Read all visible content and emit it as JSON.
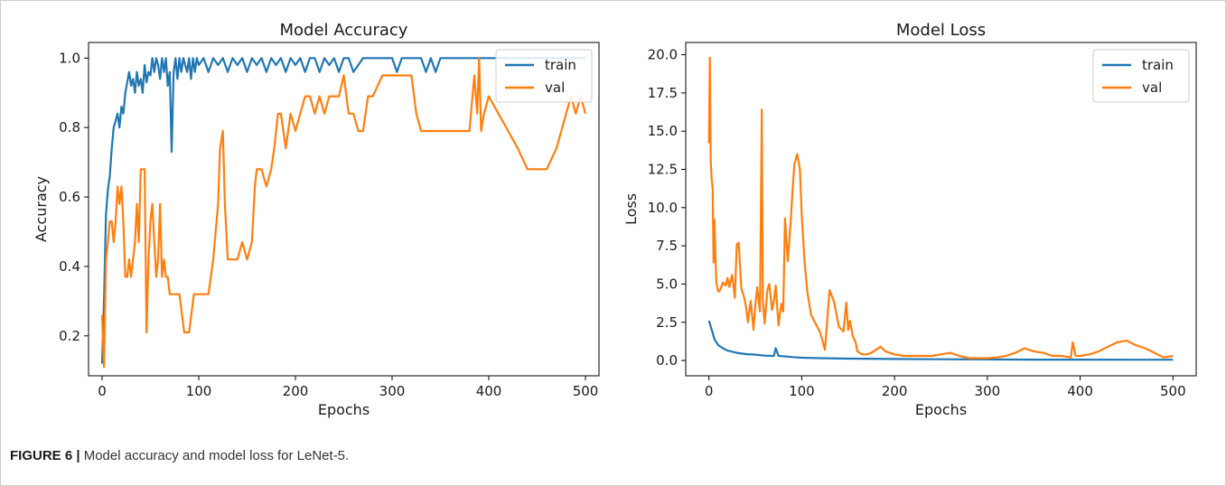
{
  "caption": {
    "label": "FIGURE 6 |",
    "text": "Model accuracy and model loss for LeNet-5."
  },
  "colors": {
    "train": "#1f77b4",
    "val": "#ff7f0e"
  },
  "chart_data": [
    {
      "type": "line",
      "title": "Model Accuracy",
      "xlabel": "Epochs",
      "ylabel": "Accuracy",
      "xlim": [
        -14,
        514
      ],
      "ylim": [
        0.085,
        1.045
      ],
      "xticks": [
        0,
        100,
        200,
        300,
        400,
        500
      ],
      "xtick_labels": [
        "0",
        "100",
        "200",
        "300",
        "400",
        "500"
      ],
      "yticks": [
        0.2,
        0.4,
        0.6,
        0.8,
        1.0
      ],
      "ytick_labels": [
        "0.2",
        "0.4",
        "0.6",
        "0.8",
        "1.0"
      ],
      "legend": "top-right",
      "grid": false,
      "series": [
        {
          "name": "train",
          "x": [
            0,
            2,
            4,
            6,
            8,
            10,
            12,
            14,
            16,
            18,
            20,
            22,
            24,
            26,
            28,
            30,
            32,
            34,
            36,
            38,
            40,
            42,
            44,
            46,
            48,
            50,
            52,
            54,
            56,
            58,
            60,
            62,
            64,
            66,
            68,
            70,
            72,
            74,
            76,
            78,
            80,
            82,
            84,
            86,
            88,
            90,
            92,
            94,
            96,
            98,
            100,
            105,
            110,
            115,
            120,
            125,
            130,
            135,
            140,
            145,
            150,
            155,
            160,
            165,
            170,
            175,
            180,
            185,
            190,
            195,
            200,
            205,
            210,
            215,
            220,
            225,
            230,
            235,
            240,
            245,
            250,
            255,
            260,
            270,
            280,
            290,
            300,
            305,
            310,
            320,
            330,
            335,
            340,
            345,
            350,
            360,
            370,
            380,
            390,
            400,
            420,
            440,
            460,
            480,
            500
          ],
          "y": [
            0.12,
            0.3,
            0.55,
            0.62,
            0.66,
            0.74,
            0.8,
            0.82,
            0.84,
            0.8,
            0.86,
            0.84,
            0.9,
            0.93,
            0.96,
            0.92,
            0.94,
            0.9,
            0.96,
            0.92,
            0.94,
            0.9,
            0.98,
            0.93,
            0.96,
            0.95,
            1.0,
            0.96,
            1.0,
            0.98,
            0.94,
            1.0,
            0.96,
            1.0,
            0.92,
            0.96,
            0.73,
            0.96,
            1.0,
            0.94,
            1.0,
            0.96,
            1.0,
            0.98,
            0.96,
            1.0,
            0.94,
            1.0,
            0.96,
            1.0,
            0.98,
            1.0,
            0.96,
            1.0,
            0.98,
            1.0,
            0.96,
            1.0,
            0.98,
            1.0,
            0.96,
            1.0,
            0.98,
            1.0,
            0.96,
            1.0,
            0.98,
            1.0,
            0.96,
            1.0,
            0.98,
            1.0,
            0.96,
            1.0,
            1.0,
            0.96,
            1.0,
            0.98,
            1.0,
            0.96,
            1.0,
            1.0,
            0.96,
            1.0,
            1.0,
            1.0,
            1.0,
            0.96,
            1.0,
            1.0,
            1.0,
            0.96,
            1.0,
            0.96,
            1.0,
            1.0,
            1.0,
            1.0,
            1.0,
            1.0,
            1.0,
            1.0,
            1.0,
            1.0,
            1.0
          ]
        },
        {
          "name": "val",
          "x": [
            0,
            2,
            4,
            6,
            8,
            10,
            12,
            14,
            16,
            18,
            20,
            22,
            24,
            26,
            28,
            30,
            32,
            34,
            36,
            38,
            40,
            42,
            44,
            46,
            48,
            50,
            52,
            54,
            56,
            58,
            60,
            62,
            64,
            66,
            68,
            70,
            72,
            74,
            76,
            80,
            85,
            90,
            95,
            100,
            105,
            110,
            115,
            120,
            122,
            125,
            127,
            130,
            135,
            140,
            145,
            150,
            155,
            158,
            160,
            165,
            170,
            175,
            178,
            180,
            182,
            185,
            190,
            195,
            200,
            205,
            210,
            215,
            220,
            225,
            230,
            235,
            240,
            245,
            250,
            255,
            260,
            265,
            270,
            275,
            280,
            290,
            300,
            310,
            320,
            325,
            330,
            340,
            350,
            360,
            370,
            380,
            385,
            388,
            390,
            392,
            395,
            400,
            410,
            420,
            430,
            440,
            450,
            460,
            470,
            475,
            480,
            485,
            490,
            495,
            500
          ],
          "y": [
            0.26,
            0.11,
            0.42,
            0.47,
            0.53,
            0.53,
            0.47,
            0.53,
            0.63,
            0.58,
            0.63,
            0.53,
            0.37,
            0.37,
            0.42,
            0.37,
            0.42,
            0.47,
            0.58,
            0.47,
            0.68,
            0.68,
            0.68,
            0.21,
            0.42,
            0.53,
            0.58,
            0.47,
            0.37,
            0.42,
            0.58,
            0.37,
            0.42,
            0.37,
            0.37,
            0.32,
            0.32,
            0.32,
            0.32,
            0.32,
            0.21,
            0.21,
            0.32,
            0.32,
            0.32,
            0.32,
            0.42,
            0.58,
            0.74,
            0.79,
            0.58,
            0.42,
            0.42,
            0.42,
            0.47,
            0.42,
            0.47,
            0.63,
            0.68,
            0.68,
            0.63,
            0.68,
            0.74,
            0.79,
            0.84,
            0.84,
            0.74,
            0.84,
            0.79,
            0.84,
            0.89,
            0.89,
            0.84,
            0.89,
            0.84,
            0.89,
            0.89,
            0.89,
            0.95,
            0.84,
            0.84,
            0.79,
            0.79,
            0.89,
            0.89,
            0.95,
            0.95,
            0.95,
            0.95,
            0.84,
            0.79,
            0.79,
            0.79,
            0.79,
            0.79,
            0.79,
            0.95,
            0.84,
            1.0,
            0.79,
            0.84,
            0.89,
            0.84,
            0.79,
            0.74,
            0.68,
            0.68,
            0.68,
            0.74,
            0.79,
            0.84,
            0.89,
            0.84,
            0.89,
            0.84
          ]
        }
      ]
    },
    {
      "type": "line",
      "title": "Model Loss",
      "xlabel": "Epochs",
      "ylabel": "Loss",
      "xlim": [
        -25,
        525
      ],
      "ylim": [
        -1.0,
        20.8
      ],
      "xticks": [
        0,
        100,
        200,
        300,
        400,
        500
      ],
      "xtick_labels": [
        "0",
        "100",
        "200",
        "300",
        "400",
        "500"
      ],
      "yticks": [
        0.0,
        2.5,
        5.0,
        7.5,
        10.0,
        12.5,
        15.0,
        17.5,
        20.0
      ],
      "ytick_labels": [
        "0.0",
        "2.5",
        "5.0",
        "7.5",
        "10.0",
        "12.5",
        "15.0",
        "17.5",
        "20.0"
      ],
      "legend": "top-right",
      "grid": false,
      "series": [
        {
          "name": "train",
          "x": [
            0,
            3,
            6,
            10,
            15,
            20,
            30,
            40,
            50,
            60,
            70,
            72,
            75,
            80,
            90,
            100,
            120,
            150,
            200,
            250,
            300,
            350,
            400,
            450,
            500
          ],
          "y": [
            2.6,
            2.0,
            1.4,
            1.0,
            0.8,
            0.65,
            0.5,
            0.42,
            0.38,
            0.32,
            0.3,
            0.8,
            0.3,
            0.28,
            0.22,
            0.18,
            0.15,
            0.12,
            0.1,
            0.08,
            0.07,
            0.06,
            0.06,
            0.05,
            0.05
          ]
        },
        {
          "name": "val",
          "x": [
            0,
            1,
            2,
            3,
            4,
            5,
            6,
            7,
            8,
            10,
            12,
            15,
            18,
            20,
            22,
            25,
            28,
            30,
            32,
            35,
            38,
            40,
            42,
            45,
            48,
            50,
            52,
            55,
            57,
            58,
            60,
            63,
            65,
            68,
            70,
            72,
            75,
            78,
            80,
            82,
            85,
            88,
            90,
            92,
            95,
            98,
            100,
            103,
            106,
            110,
            115,
            120,
            125,
            130,
            135,
            140,
            145,
            148,
            150,
            152,
            155,
            158,
            160,
            165,
            170,
            175,
            180,
            185,
            190,
            195,
            200,
            210,
            220,
            230,
            240,
            250,
            260,
            265,
            270,
            280,
            290,
            300,
            310,
            320,
            330,
            340,
            350,
            360,
            370,
            380,
            390,
            392,
            395,
            400,
            410,
            420,
            430,
            440,
            450,
            460,
            470,
            480,
            490,
            500
          ],
          "y": [
            14.2,
            19.8,
            13.0,
            11.8,
            11.3,
            6.4,
            9.2,
            6.8,
            5.1,
            4.5,
            4.6,
            5.1,
            4.9,
            5.4,
            4.8,
            5.6,
            4.1,
            7.6,
            7.7,
            4.7,
            4.1,
            3.5,
            2.5,
            3.9,
            2.0,
            3.6,
            4.8,
            3.2,
            16.4,
            4.0,
            2.4,
            4.6,
            5.0,
            3.3,
            3.9,
            4.9,
            2.3,
            3.7,
            3.2,
            9.3,
            6.5,
            9.0,
            11.0,
            12.8,
            13.5,
            12.5,
            9.5,
            6.5,
            4.5,
            3.0,
            2.4,
            1.8,
            0.7,
            4.6,
            3.8,
            2.2,
            1.9,
            3.8,
            2.0,
            2.6,
            1.6,
            1.2,
            0.6,
            0.4,
            0.4,
            0.5,
            0.7,
            0.9,
            0.6,
            0.5,
            0.4,
            0.3,
            0.3,
            0.3,
            0.3,
            0.4,
            0.5,
            0.4,
            0.3,
            0.15,
            0.15,
            0.15,
            0.2,
            0.3,
            0.5,
            0.8,
            0.6,
            0.5,
            0.3,
            0.3,
            0.2,
            1.2,
            0.3,
            0.3,
            0.4,
            0.6,
            0.9,
            1.2,
            1.3,
            1.0,
            0.8,
            0.5,
            0.2,
            0.3
          ]
        }
      ]
    }
  ]
}
